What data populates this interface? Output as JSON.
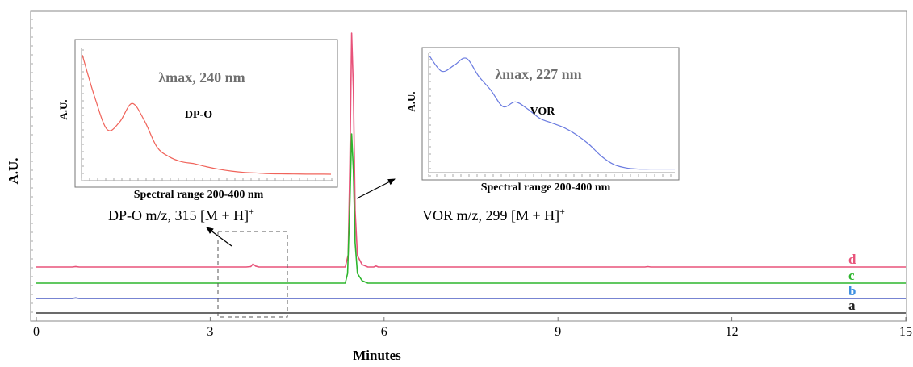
{
  "chart_data": {
    "type": "line",
    "xlabel": "Minutes",
    "ylabel": "A.U.",
    "xlim": [
      0,
      15
    ],
    "x_ticks": [
      0,
      3,
      6,
      9,
      12,
      15
    ],
    "series": [
      {
        "name": "d",
        "color": "#e8537a",
        "baseline": 3,
        "points": [
          [
            0,
            0
          ],
          [
            0.62,
            0
          ],
          [
            0.68,
            0.6
          ],
          [
            0.74,
            0
          ],
          [
            3.62,
            0
          ],
          [
            3.7,
            0.5
          ],
          [
            3.74,
            3.8
          ],
          [
            3.78,
            1.2
          ],
          [
            3.84,
            0
          ],
          [
            5.33,
            0
          ],
          [
            5.38,
            15
          ],
          [
            5.41,
            130
          ],
          [
            5.44,
            290
          ],
          [
            5.47,
            220
          ],
          [
            5.5,
            70
          ],
          [
            5.54,
            14
          ],
          [
            5.62,
            3
          ],
          [
            5.72,
            0
          ],
          [
            5.82,
            0
          ],
          [
            5.86,
            1.2
          ],
          [
            5.9,
            0
          ],
          [
            10.5,
            0
          ],
          [
            10.55,
            0.5
          ],
          [
            10.6,
            0
          ],
          [
            15,
            0
          ]
        ]
      },
      {
        "name": "c",
        "color": "#2db52d",
        "baseline": 2,
        "points": [
          [
            0,
            0
          ],
          [
            5.33,
            0
          ],
          [
            5.37,
            12
          ],
          [
            5.41,
            100
          ],
          [
            5.44,
            185
          ],
          [
            5.47,
            140
          ],
          [
            5.5,
            50
          ],
          [
            5.54,
            12
          ],
          [
            5.62,
            3
          ],
          [
            5.72,
            0
          ],
          [
            15,
            0
          ]
        ]
      },
      {
        "name": "b",
        "color": "#4a5bc4",
        "baseline": 1,
        "points": [
          [
            0,
            0
          ],
          [
            0.62,
            0
          ],
          [
            0.68,
            0.7
          ],
          [
            0.74,
            0
          ],
          [
            15,
            0
          ]
        ]
      },
      {
        "name": "a",
        "color": "#3a3a3a",
        "baseline": 0,
        "points": [
          [
            0,
            0
          ],
          [
            15,
            0
          ]
        ]
      }
    ],
    "series_labels": [
      "d",
      "c",
      "b",
      "a"
    ],
    "label_colors": [
      "#e8537a",
      "#2db52d",
      "#3d8fe0",
      "#222222"
    ],
    "annotations": {
      "dpo_ms": "DP-O  m/z, 315 [M + H]",
      "vor_ms": "VOR  m/z, 299 [M + H]",
      "superscript": "+"
    },
    "insets": [
      {
        "name": "DP-O",
        "lambda_text": "λmax, 240 nm",
        "compound": "DP-O",
        "ylabel": "A.U.",
        "xlabel": "Spectral range 200-400 nm",
        "color": "#f0635a",
        "y": [
          0.96,
          0.62,
          0.36,
          0.42,
          0.57,
          0.43,
          0.22,
          0.14,
          0.1,
          0.085,
          0.06,
          0.04,
          0.025,
          0.015,
          0.01,
          0.005,
          0.003,
          0.002,
          0.001,
          0.001,
          0.0
        ]
      },
      {
        "name": "VOR",
        "lambda_text": "λmax, 227 nm",
        "compound": "VOR",
        "ylabel": "A.U.",
        "xlabel": "Spectral range 200-400 nm",
        "color": "#6a7be0",
        "y": [
          0.97,
          0.84,
          0.89,
          0.95,
          0.8,
          0.68,
          0.54,
          0.58,
          0.52,
          0.44,
          0.4,
          0.36,
          0.3,
          0.22,
          0.12,
          0.05,
          0.02,
          0.01,
          0.01,
          0.01,
          0.01
        ]
      }
    ]
  }
}
